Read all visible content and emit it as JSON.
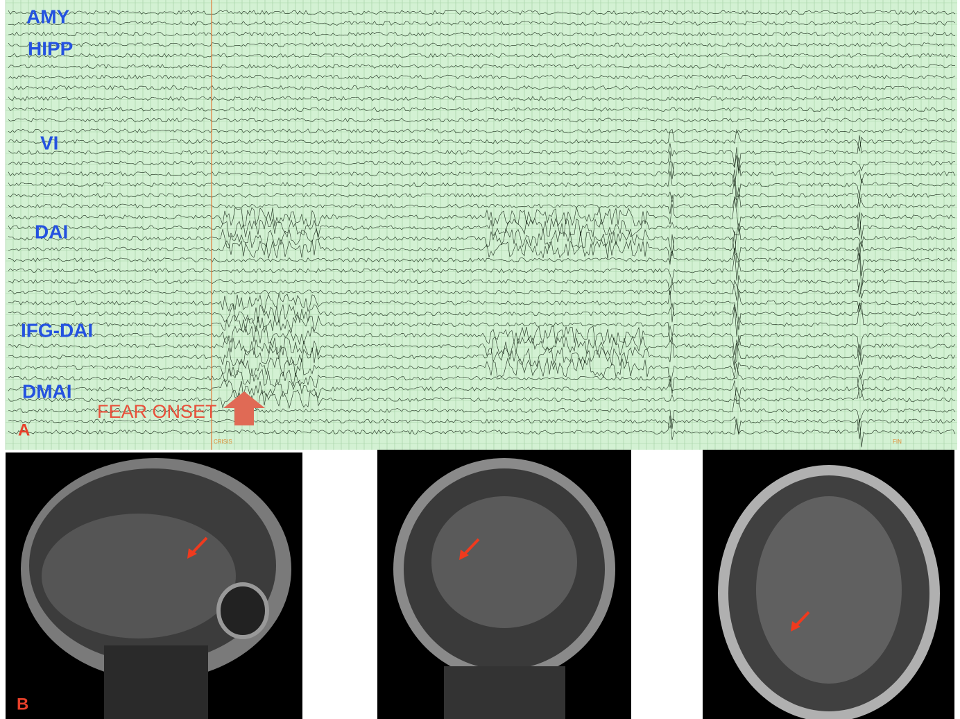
{
  "panel_a": {
    "label": "A",
    "channels": [
      "AMY",
      "HIPP",
      "VI",
      "DAI",
      "IFG-DAI",
      "DMAI"
    ],
    "annotation": "FEAR ONSET",
    "markers": [
      "CRISIS",
      "FIN"
    ]
  },
  "panel_b": {
    "label": "B"
  }
}
